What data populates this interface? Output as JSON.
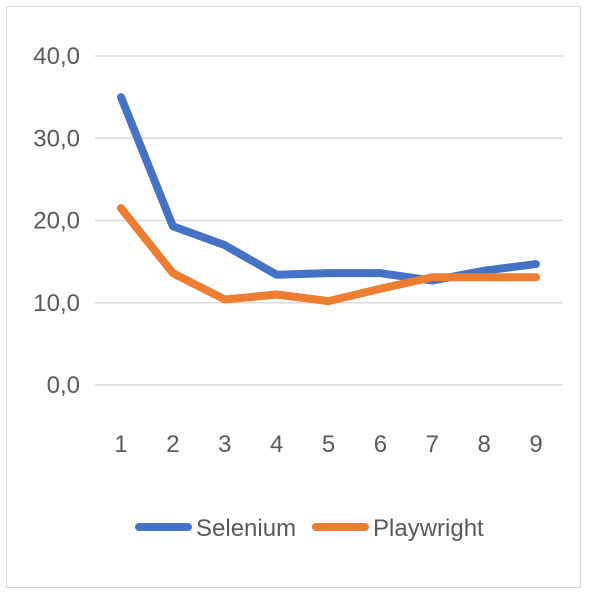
{
  "chart_data": {
    "type": "line",
    "title": "",
    "xlabel": "",
    "ylabel": "",
    "categories": [
      "1",
      "2",
      "3",
      "4",
      "5",
      "6",
      "7",
      "8",
      "9"
    ],
    "ylim": [
      0,
      40
    ],
    "yticks": [
      "0,0",
      "10,0",
      "20,0",
      "30,0",
      "40,0"
    ],
    "grid": true,
    "legend_position": "bottom",
    "series": [
      {
        "name": "Selenium",
        "color": "#4472C4",
        "values": [
          35.0,
          19.3,
          17.0,
          13.4,
          13.6,
          13.6,
          12.7,
          13.9,
          14.7
        ]
      },
      {
        "name": "Playwright",
        "color": "#ED7D31",
        "values": [
          21.5,
          13.6,
          10.4,
          11.0,
          10.2,
          11.7,
          13.1,
          13.1,
          13.1
        ]
      }
    ]
  }
}
